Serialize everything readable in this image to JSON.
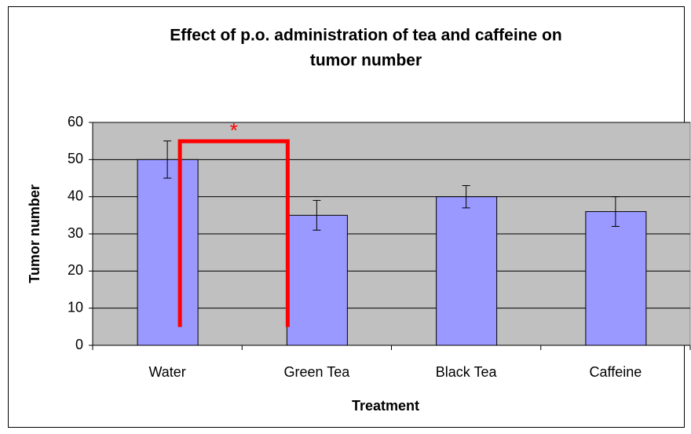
{
  "chart_data": {
    "type": "bar",
    "title": [
      "Effect of p.o. administration of tea and caffeine on",
      "tumor number"
    ],
    "x_label": "Treatment",
    "y_label": "Tumor number",
    "categories": [
      "Water",
      "Green Tea",
      "Black Tea",
      "Caffeine"
    ],
    "values": [
      50,
      35,
      40,
      36
    ],
    "errors": [
      5,
      4,
      3,
      4
    ],
    "color": "#9999ff",
    "plot_background": "#c0c0c0",
    "ylim": [
      0,
      60
    ],
    "yticks": [
      0,
      10,
      20,
      30,
      40,
      50,
      60
    ],
    "grid": true,
    "annotation": "*"
  }
}
